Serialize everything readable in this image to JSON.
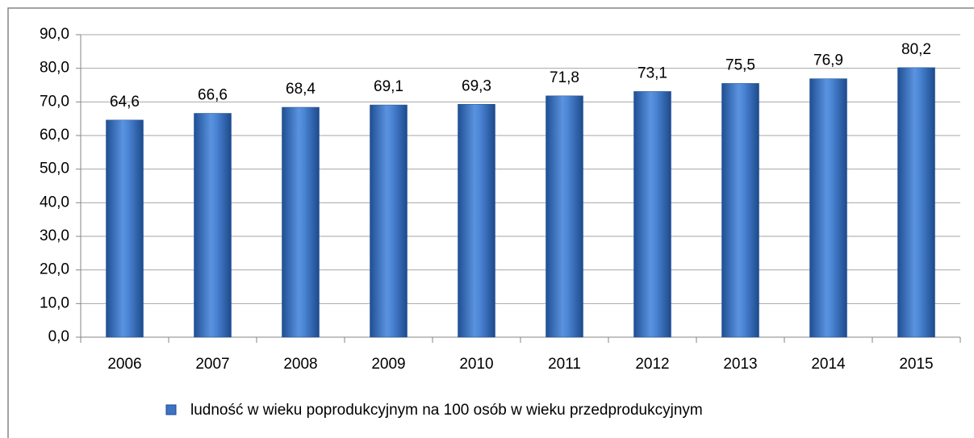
{
  "chart_data": {
    "type": "bar",
    "categories": [
      "2006",
      "2007",
      "2008",
      "2009",
      "2010",
      "2011",
      "2012",
      "2013",
      "2014",
      "2015"
    ],
    "series": [
      {
        "name": "ludność w wieku poprodukcyjnym na 100 osób w wieku przedprodukcyjnym",
        "color": "#3d72c4",
        "values": [
          64.6,
          66.6,
          68.4,
          69.1,
          69.3,
          71.8,
          73.1,
          75.5,
          76.9,
          80.2
        ],
        "value_labels": [
          "64,6",
          "66,6",
          "68,4",
          "69,1",
          "69,3",
          "71,8",
          "73,1",
          "75,5",
          "76,9",
          "80,2"
        ]
      }
    ],
    "ylim": [
      0,
      90
    ],
    "yticks": [
      {
        "value": 0,
        "label": "0,0"
      },
      {
        "value": 10,
        "label": "10,0"
      },
      {
        "value": 20,
        "label": "20,0"
      },
      {
        "value": 30,
        "label": "30,0"
      },
      {
        "value": 40,
        "label": "40,0"
      },
      {
        "value": 50,
        "label": "50,0"
      },
      {
        "value": 60,
        "label": "60,0"
      },
      {
        "value": 70,
        "label": "70,0"
      },
      {
        "value": 80,
        "label": "80,0"
      },
      {
        "value": 90,
        "label": "90,0"
      }
    ],
    "grid": true,
    "legend": "bottom"
  }
}
